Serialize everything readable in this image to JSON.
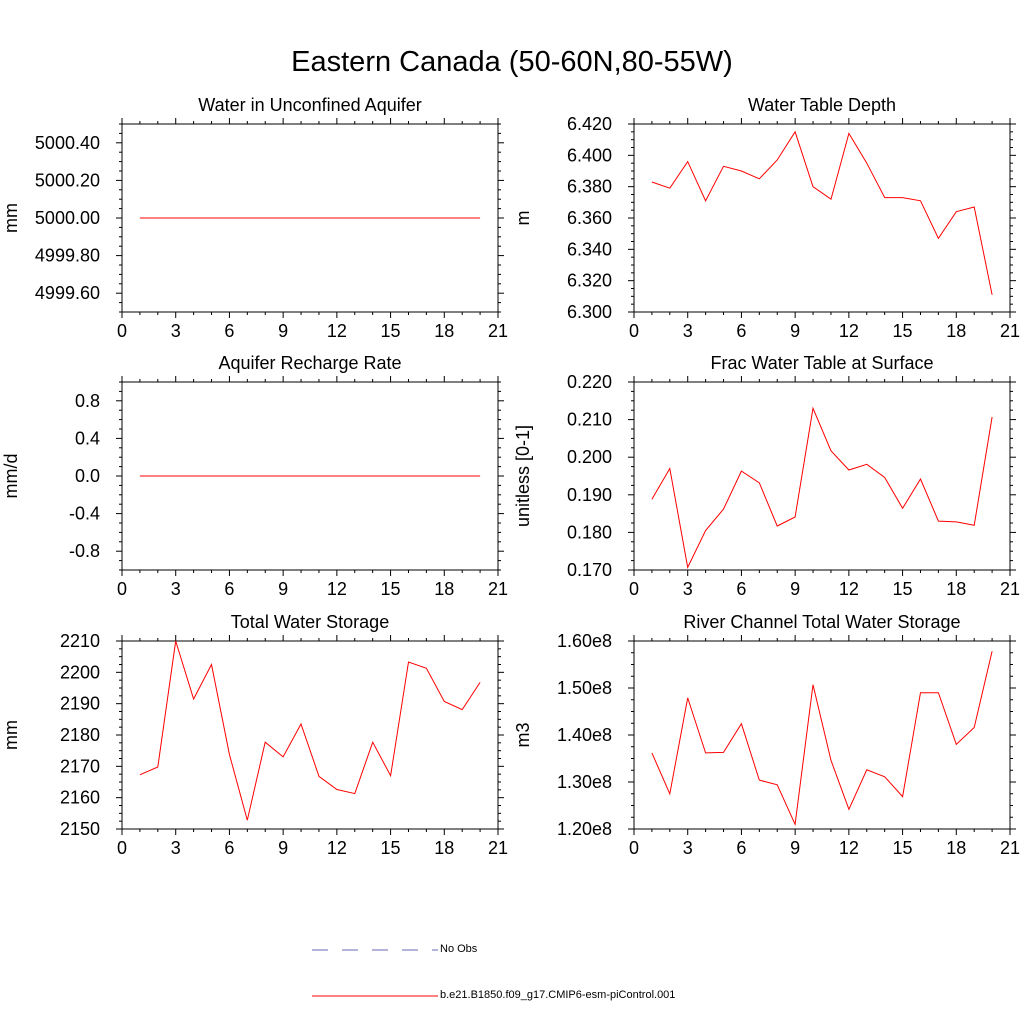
{
  "figure_title": "Eastern Canada (50-60N,80-55W)",
  "legend": {
    "items": [
      {
        "label": "No Obs",
        "color": "#6a6ab4",
        "dash": "dashed"
      },
      {
        "label": "b.e21.B1850.f09_g17.CMIP6-esm-piControl.001",
        "color": "#ff0000",
        "dash": "solid"
      }
    ]
  },
  "chart_data": [
    {
      "id": "aquifer",
      "type": "line",
      "title": "Water in Unconfined Aquifer",
      "xlabel": "",
      "ylabel": "mm",
      "xlim": [
        0,
        21
      ],
      "xticks": [
        0,
        3,
        6,
        9,
        12,
        15,
        18,
        21
      ],
      "ylim": [
        4999.5,
        5000.5
      ],
      "yticks": [
        4999.6,
        4999.8,
        5000.0,
        5000.2,
        5000.4
      ],
      "ytick_labels": [
        "4999.60",
        "4999.80",
        "5000.00",
        "5000.20",
        "5000.40"
      ],
      "series": [
        {
          "name": "b.e21.B1850.f09_g17.CMIP6-esm-piControl.001",
          "color": "#ff0000",
          "x": [
            1,
            2,
            3,
            4,
            5,
            6,
            7,
            8,
            9,
            10,
            11,
            12,
            13,
            14,
            15,
            16,
            17,
            18,
            19,
            20
          ],
          "values": [
            5000.0,
            5000.0,
            5000.0,
            5000.0,
            5000.0,
            5000.0,
            5000.0,
            5000.0,
            5000.0,
            5000.0,
            5000.0,
            5000.0,
            5000.0,
            5000.0,
            5000.0,
            5000.0,
            5000.0,
            5000.0,
            5000.0,
            5000.0
          ]
        }
      ]
    },
    {
      "id": "wtd",
      "type": "line",
      "title": "Water Table Depth",
      "xlabel": "",
      "ylabel": "m",
      "xlim": [
        0,
        21
      ],
      "xticks": [
        0,
        3,
        6,
        9,
        12,
        15,
        18,
        21
      ],
      "ylim": [
        6.3,
        6.42
      ],
      "yticks": [
        6.3,
        6.32,
        6.34,
        6.36,
        6.38,
        6.4,
        6.42
      ],
      "ytick_labels": [
        "6.300",
        "6.320",
        "6.340",
        "6.360",
        "6.380",
        "6.400",
        "6.420"
      ],
      "series": [
        {
          "name": "b.e21.B1850.f09_g17.CMIP6-esm-piControl.001",
          "color": "#ff0000",
          "x": [
            1,
            2,
            3,
            4,
            5,
            6,
            7,
            8,
            9,
            10,
            11,
            12,
            13,
            14,
            15,
            16,
            17,
            18,
            19,
            20
          ],
          "values": [
            6.383,
            6.379,
            6.396,
            6.371,
            6.393,
            6.39,
            6.385,
            6.397,
            6.415,
            6.38,
            6.372,
            6.414,
            6.395,
            6.373,
            6.373,
            6.371,
            6.347,
            6.364,
            6.367,
            6.311
          ]
        }
      ]
    },
    {
      "id": "recharge",
      "type": "line",
      "title": "Aquifer Recharge Rate",
      "xlabel": "",
      "ylabel": "mm/d",
      "xlim": [
        0,
        21
      ],
      "xticks": [
        0,
        3,
        6,
        9,
        12,
        15,
        18,
        21
      ],
      "ylim": [
        -1.0,
        1.0
      ],
      "yticks": [
        -0.8,
        -0.4,
        0.0,
        0.4,
        0.8
      ],
      "ytick_labels": [
        "-0.8",
        "-0.4",
        "0.0",
        "0.4",
        "0.8"
      ],
      "series": [
        {
          "name": "b.e21.B1850.f09_g17.CMIP6-esm-piControl.001",
          "color": "#ff0000",
          "x": [
            1,
            2,
            3,
            4,
            5,
            6,
            7,
            8,
            9,
            10,
            11,
            12,
            13,
            14,
            15,
            16,
            17,
            18,
            19,
            20
          ],
          "values": [
            0,
            0,
            0,
            0,
            0,
            0,
            0,
            0,
            0,
            0,
            0,
            0,
            0,
            0,
            0,
            0,
            0,
            0,
            0,
            0
          ]
        }
      ]
    },
    {
      "id": "fracwt",
      "type": "line",
      "title": "Frac Water Table at Surface",
      "xlabel": "",
      "ylabel": "unitless [0-1]",
      "xlim": [
        0,
        21
      ],
      "xticks": [
        0,
        3,
        6,
        9,
        12,
        15,
        18,
        21
      ],
      "ylim": [
        0.17,
        0.22
      ],
      "yticks": [
        0.17,
        0.18,
        0.19,
        0.2,
        0.21,
        0.22
      ],
      "ytick_labels": [
        "0.170",
        "0.180",
        "0.190",
        "0.200",
        "0.210",
        "0.220"
      ],
      "series": [
        {
          "name": "b.e21.B1850.f09_g17.CMIP6-esm-piControl.001",
          "color": "#ff0000",
          "x": [
            1,
            2,
            3,
            4,
            5,
            6,
            7,
            8,
            9,
            10,
            11,
            12,
            13,
            14,
            15,
            16,
            17,
            18,
            19,
            20
          ],
          "values": [
            0.1888,
            0.197,
            0.1707,
            0.1805,
            0.1862,
            0.1963,
            0.1932,
            0.1817,
            0.1841,
            0.213,
            0.2017,
            0.1966,
            0.1981,
            0.1946,
            0.1864,
            0.1942,
            0.183,
            0.1828,
            0.1819,
            0.2107
          ]
        }
      ]
    },
    {
      "id": "tws",
      "type": "line",
      "title": "Total Water Storage",
      "xlabel": "",
      "ylabel": "mm",
      "xlim": [
        0,
        21
      ],
      "xticks": [
        0,
        3,
        6,
        9,
        12,
        15,
        18,
        21
      ],
      "ylim": [
        2150,
        2210
      ],
      "yticks": [
        2150,
        2160,
        2170,
        2180,
        2190,
        2200,
        2210
      ],
      "ytick_labels": [
        "2150",
        "2160",
        "2170",
        "2180",
        "2190",
        "2200",
        "2210"
      ],
      "series": [
        {
          "name": "b.e21.B1850.f09_g17.CMIP6-esm-piControl.001",
          "color": "#ff0000",
          "x": [
            1,
            2,
            3,
            4,
            5,
            6,
            7,
            8,
            9,
            10,
            11,
            12,
            13,
            14,
            15,
            16,
            17,
            18,
            19,
            20
          ],
          "values": [
            2167.3,
            2169.8,
            2210.0,
            2191.5,
            2202.5,
            2173.8,
            2152.8,
            2177.7,
            2173.0,
            2183.5,
            2166.8,
            2162.6,
            2161.3,
            2177.7,
            2167.0,
            2203.3,
            2201.3,
            2190.7,
            2188.1,
            2196.8
          ]
        }
      ]
    },
    {
      "id": "river",
      "type": "line",
      "title": "River Channel Total Water Storage",
      "xlabel": "",
      "ylabel": "m3",
      "xlim": [
        0,
        21
      ],
      "xticks": [
        0,
        3,
        6,
        9,
        12,
        15,
        18,
        21
      ],
      "ylim": [
        120000000.0,
        160000000.0
      ],
      "yticks": [
        120000000.0,
        130000000.0,
        140000000.0,
        150000000.0,
        160000000.0
      ],
      "ytick_labels": [
        "1.20e8",
        "1.30e8",
        "1.40e8",
        "1.50e8",
        "1.60e8"
      ],
      "series": [
        {
          "name": "b.e21.B1850.f09_g17.CMIP6-esm-piControl.001",
          "color": "#ff0000",
          "x": [
            1,
            2,
            3,
            4,
            5,
            6,
            7,
            8,
            9,
            10,
            11,
            12,
            13,
            14,
            15,
            16,
            17,
            18,
            19,
            20
          ],
          "values": [
            136200000.0,
            127500000.0,
            147900000.0,
            136200000.0,
            136300000.0,
            142400000.0,
            130400000.0,
            129400000.0,
            121000000.0,
            150700000.0,
            134600000.0,
            124200000.0,
            132600000.0,
            131100000.0,
            126900000.0,
            149000000.0,
            149000000.0,
            138000000.0,
            141600000.0,
            157800000.0
          ]
        }
      ]
    }
  ]
}
